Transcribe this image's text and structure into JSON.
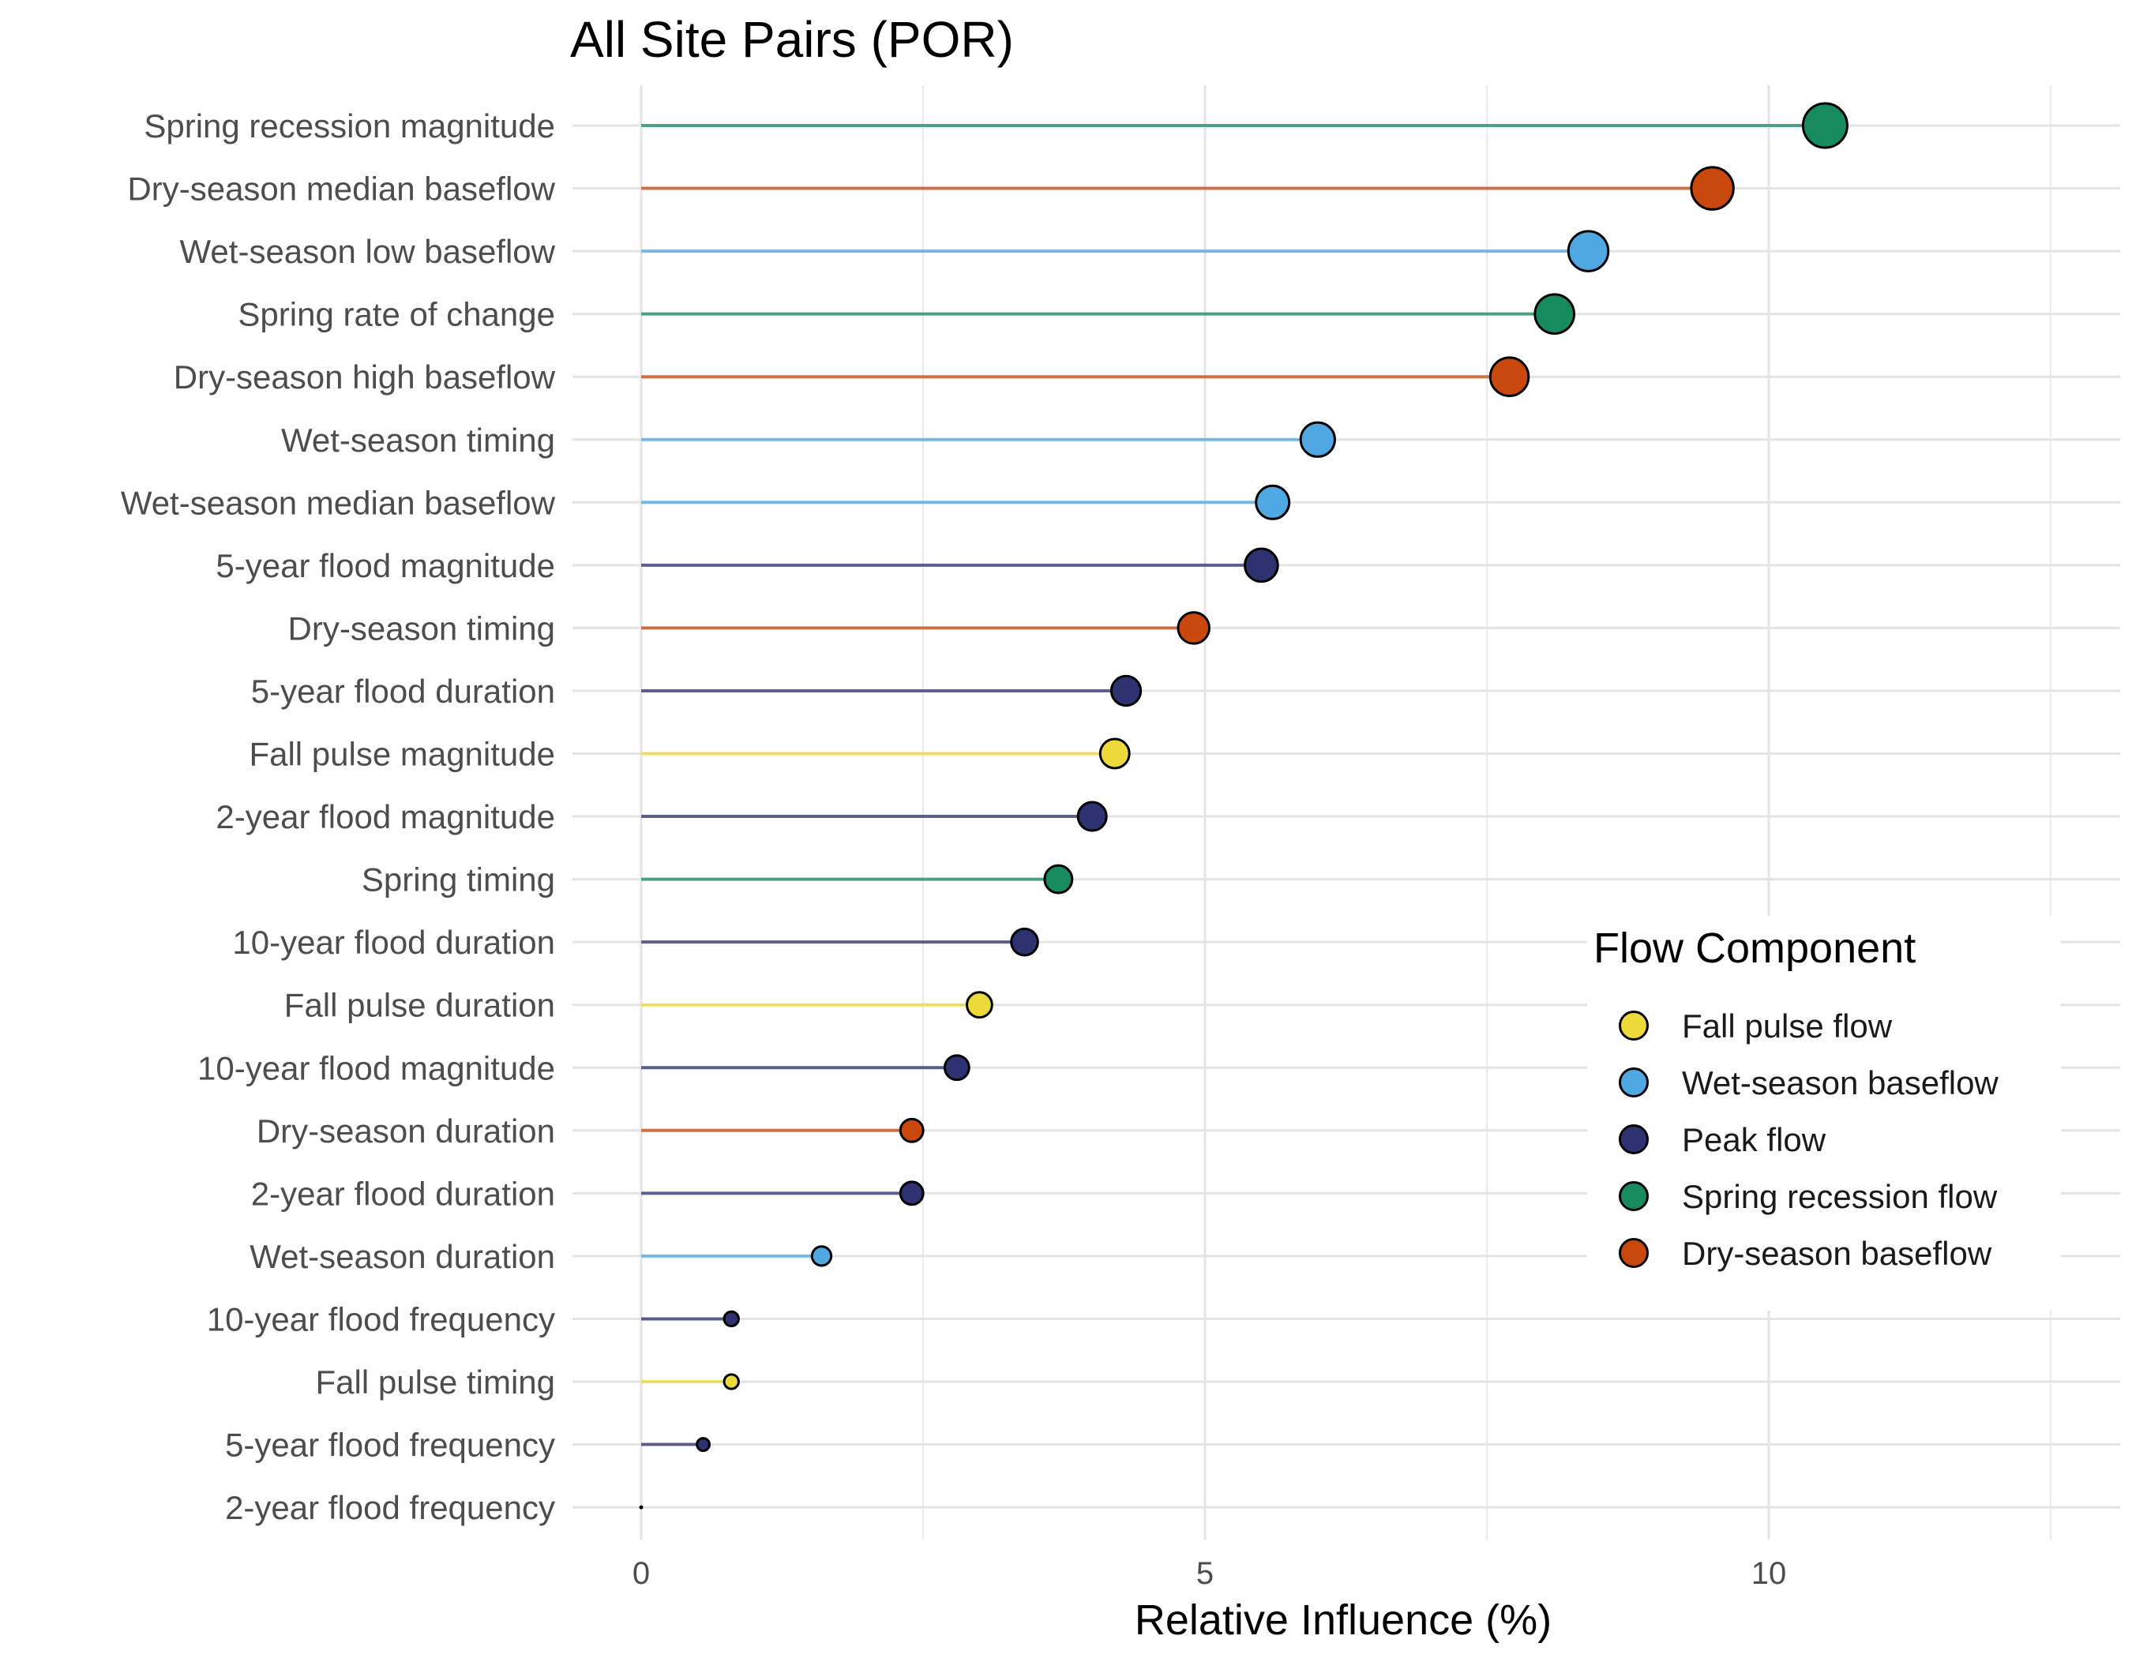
{
  "chart_data": {
    "type": "lollipop",
    "title": "All Site Pairs (POR)",
    "xlabel": "Relative Influence (%)",
    "ylabel": "",
    "xlim": [
      0,
      26
    ],
    "xticks": [
      0,
      5,
      10,
      15,
      20,
      25
    ],
    "grid": true,
    "legend": {
      "title": "Flow Component",
      "placement": "right",
      "entries": [
        {
          "name": "Fall pulse flow",
          "color": "#ecd93a"
        },
        {
          "name": "Wet-season baseflow",
          "color": "#4fa8e2"
        },
        {
          "name": "Peak flow",
          "color": "#2e3270"
        },
        {
          "name": "Spring recession flow",
          "color": "#178a5e"
        },
        {
          "name": "Dry-season baseflow",
          "color": "#c9480e"
        }
      ]
    },
    "points": [
      {
        "label": "Spring recession magnitude",
        "value": 10.5,
        "component": "Spring recession flow"
      },
      {
        "label": "Dry-season median baseflow",
        "value": 9.5,
        "component": "Dry-season baseflow"
      },
      {
        "label": "Wet-season low baseflow",
        "value": 8.4,
        "component": "Wet-season baseflow"
      },
      {
        "label": "Spring rate of change",
        "value": 8.1,
        "component": "Spring recession flow"
      },
      {
        "label": "Dry-season high baseflow",
        "value": 7.7,
        "component": "Dry-season baseflow"
      },
      {
        "label": "Wet-season timing",
        "value": 6.0,
        "component": "Wet-season baseflow"
      },
      {
        "label": "Wet-season median baseflow",
        "value": 5.6,
        "component": "Wet-season baseflow"
      },
      {
        "label": "5-year flood magnitude",
        "value": 5.5,
        "component": "Peak flow"
      },
      {
        "label": "Dry-season timing",
        "value": 4.9,
        "component": "Dry-season baseflow"
      },
      {
        "label": "5-year flood duration",
        "value": 4.3,
        "component": "Peak flow"
      },
      {
        "label": "Fall pulse magnitude",
        "value": 4.2,
        "component": "Fall pulse flow"
      },
      {
        "label": "2-year flood magnitude",
        "value": 4.0,
        "component": "Peak flow"
      },
      {
        "label": "Spring timing",
        "value": 3.7,
        "component": "Spring recession flow"
      },
      {
        "label": "10-year flood duration",
        "value": 3.4,
        "component": "Peak flow"
      },
      {
        "label": "Fall pulse duration",
        "value": 3.0,
        "component": "Fall pulse flow"
      },
      {
        "label": "10-year flood magnitude",
        "value": 2.8,
        "component": "Peak flow"
      },
      {
        "label": "Dry-season duration",
        "value": 2.4,
        "component": "Dry-season baseflow"
      },
      {
        "label": "2-year flood duration",
        "value": 2.4,
        "component": "Peak flow"
      },
      {
        "label": "Wet-season duration",
        "value": 1.6,
        "component": "Wet-season baseflow"
      },
      {
        "label": "10-year flood frequency",
        "value": 0.8,
        "component": "Peak flow"
      },
      {
        "label": "Fall pulse timing",
        "value": 0.8,
        "component": "Fall pulse flow"
      },
      {
        "label": "5-year flood frequency",
        "value": 0.55,
        "component": "Peak flow"
      },
      {
        "label": "2-year flood frequency",
        "value": 0.0,
        "component": "Peak flow"
      }
    ]
  }
}
